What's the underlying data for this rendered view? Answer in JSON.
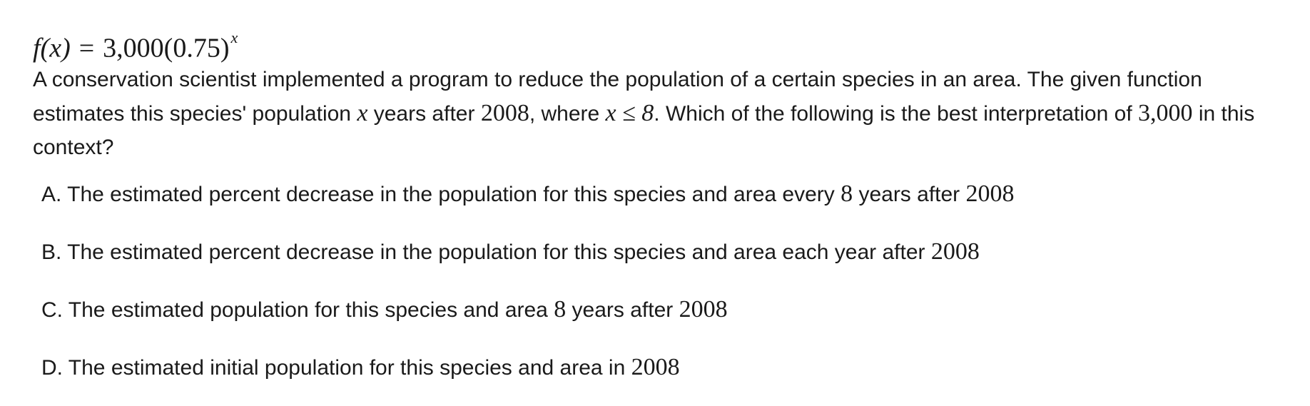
{
  "formula": {
    "lhs": "f(x)",
    "equals": "=",
    "rhs_base": "3,000(0.75)",
    "exponent": "x"
  },
  "question": {
    "part1": "A conservation scientist implemented a program to reduce the population of a certain species in an area. The given function estimates this species' population ",
    "var_x": "x",
    "part2": " years after ",
    "year": "2008",
    "part3": ", where ",
    "condition": "x ≤ 8",
    "part4": ". Which of the following is the best interpretation of ",
    "value": "3,000",
    "part5": " in this context?"
  },
  "choices": [
    {
      "prefix": "A. The estimated percent decrease in the population for this species and area every ",
      "num": "8",
      "mid": " years after ",
      "year": "2008"
    },
    {
      "prefix": "B. The estimated percent decrease in the population for this species and area each year after ",
      "year": "2008"
    },
    {
      "prefix": "C. The estimated population for this species and area ",
      "num": "8",
      "mid": " years after ",
      "year": "2008"
    },
    {
      "prefix": "D. The estimated initial population for this species and area in ",
      "year": "2008"
    }
  ]
}
